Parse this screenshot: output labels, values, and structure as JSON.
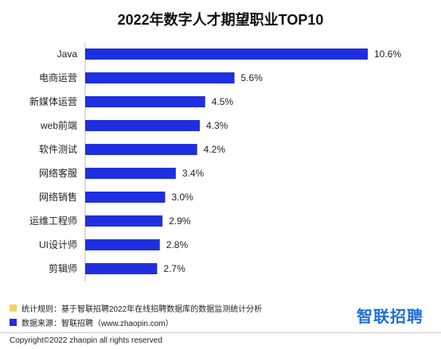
{
  "chart_data": {
    "type": "bar",
    "orientation": "horizontal",
    "title": "2022年数字人才期望职业TOP10",
    "categories": [
      "Java",
      "电商运营",
      "新媒体运营",
      "web前端",
      "软件测试",
      "网络客服",
      "网络销售",
      "运维工程师",
      "UI设计师",
      "剪辑师"
    ],
    "values": [
      10.6,
      5.6,
      4.5,
      4.3,
      4.2,
      3.4,
      3.0,
      2.9,
      2.8,
      2.7
    ],
    "value_labels": [
      "10.6%",
      "5.6%",
      "4.5%",
      "4.3%",
      "4.2%",
      "3.4%",
      "3.0%",
      "2.9%",
      "2.8%",
      "2.7%"
    ],
    "xlim": [
      0,
      10.6
    ],
    "grid": false,
    "bar_color": "#1f2fe0"
  },
  "legend": {
    "rule_label": "统计规则：基于智联招聘2022年在线招聘数据库的数据监测统计分析",
    "rule_color": "#f2d266",
    "source_label": "数据来源：智联招聘（www.zhaopin.com）",
    "source_color": "#1f2fe0"
  },
  "brand": "智联招聘",
  "copyright": "Copyright©2022 zhaopin all rights reserved"
}
